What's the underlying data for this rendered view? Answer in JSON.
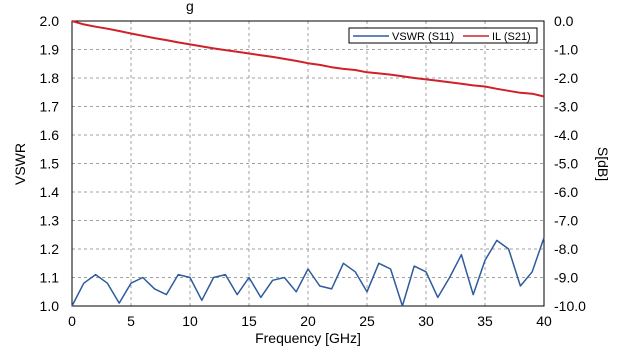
{
  "chart_data": {
    "type": "line",
    "header_fragment": "g",
    "xlabel": "Frequency [GHz]",
    "ylabel_left": "VSWR",
    "ylabel_right": "S[dB]",
    "xlim": [
      0,
      40
    ],
    "ylim_left": [
      1.0,
      2.0
    ],
    "ylim_right": [
      -10.0,
      0.0
    ],
    "x_ticks": [
      "0",
      "5",
      "10",
      "15",
      "20",
      "25",
      "30",
      "35",
      "40"
    ],
    "y_left_ticks": [
      "1.0",
      "1.1",
      "1.2",
      "1.3",
      "1.4",
      "1.5",
      "1.6",
      "1.7",
      "1.8",
      "1.9",
      "2.0"
    ],
    "y_right_ticks": [
      "-10.0",
      "-9.0",
      "-8.0",
      "-7.0",
      "-6.0",
      "-5.0",
      "-4.0",
      "-3.0",
      "-2.0",
      "-1.0",
      "0.0"
    ],
    "grid": true,
    "legend_position": "top-right",
    "series": [
      {
        "name": "VSWR (S11)",
        "axis": "left",
        "color": "#2e5b9e",
        "x": [
          0,
          1,
          2,
          3,
          4,
          5,
          6,
          7,
          8,
          9,
          10,
          11,
          12,
          13,
          14,
          15,
          16,
          17,
          18,
          19,
          20,
          21,
          22,
          23,
          24,
          25,
          26,
          27,
          28,
          29,
          30,
          31,
          32,
          33,
          34,
          35,
          36,
          37,
          38,
          39,
          40
        ],
        "y": [
          1.0,
          1.08,
          1.11,
          1.08,
          1.01,
          1.08,
          1.1,
          1.06,
          1.04,
          1.11,
          1.1,
          1.02,
          1.1,
          1.11,
          1.04,
          1.1,
          1.03,
          1.09,
          1.1,
          1.05,
          1.13,
          1.07,
          1.06,
          1.15,
          1.12,
          1.05,
          1.15,
          1.13,
          1.0,
          1.14,
          1.12,
          1.03,
          1.1,
          1.18,
          1.04,
          1.16,
          1.23,
          1.2,
          1.07,
          1.12,
          1.24
        ]
      },
      {
        "name": "IL (S21)",
        "axis": "right",
        "color": "#d0202a",
        "x": [
          0,
          1,
          2,
          3,
          4,
          5,
          6,
          7,
          8,
          9,
          10,
          11,
          12,
          13,
          14,
          15,
          16,
          17,
          18,
          19,
          20,
          21,
          22,
          23,
          24,
          25,
          26,
          27,
          28,
          29,
          30,
          31,
          32,
          33,
          34,
          35,
          36,
          37,
          38,
          39,
          40
        ],
        "y": [
          0.0,
          -0.12,
          -0.2,
          -0.27,
          -0.35,
          -0.44,
          -0.52,
          -0.6,
          -0.67,
          -0.75,
          -0.82,
          -0.89,
          -0.96,
          -1.02,
          -1.08,
          -1.14,
          -1.2,
          -1.26,
          -1.33,
          -1.4,
          -1.48,
          -1.54,
          -1.62,
          -1.68,
          -1.72,
          -1.8,
          -1.84,
          -1.88,
          -1.94,
          -2.0,
          -2.05,
          -2.1,
          -2.15,
          -2.2,
          -2.26,
          -2.3,
          -2.38,
          -2.45,
          -2.52,
          -2.55,
          -2.65
        ]
      }
    ]
  }
}
